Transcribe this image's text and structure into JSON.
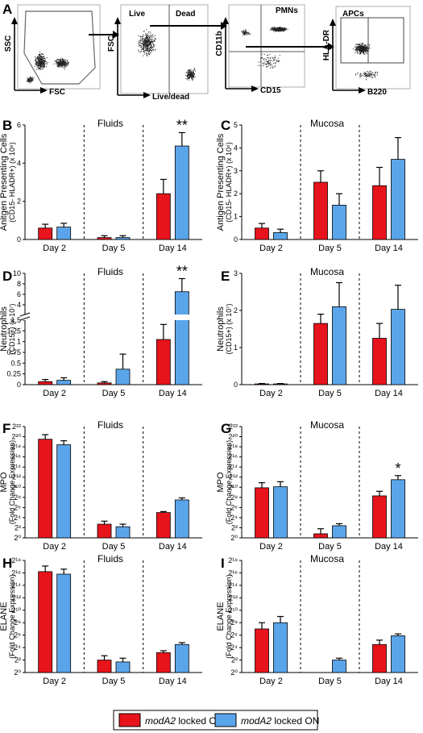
{
  "colors": {
    "off": "#e8141c",
    "on": "#5aa5ea",
    "axis": "#000000"
  },
  "flow": {
    "panel_letter": "A",
    "plots": [
      {
        "x_label": "FSC",
        "y_label": "SSC"
      },
      {
        "x_label": "Live/dead",
        "y_label": "FSC",
        "gates": [
          "Live",
          "Dead"
        ]
      },
      {
        "x_label": "CD15",
        "y_label": "CD11b",
        "gates": [
          "PMNs"
        ]
      },
      {
        "x_label": "B220",
        "y_label": "HLA-DR",
        "gates": [
          "APCs"
        ]
      }
    ]
  },
  "legend": {
    "off_prefix": "modA2",
    "off_suffix": " locked OFF",
    "on_prefix": "modA2",
    "on_suffix": " locked ON"
  },
  "chart_data": [
    {
      "panel": "B",
      "type": "bar",
      "title": "Fluids",
      "ylabel": "Anitgen Presenting Cells",
      "ylabel2": "(CD15- HLADR+) (x 10⁶)",
      "categories": [
        "Day 2",
        "Day 5",
        "Day 14"
      ],
      "ylim": [
        0,
        6
      ],
      "yticks": [
        "0",
        "2",
        "4",
        "6"
      ],
      "series": [
        {
          "name": "modA2 locked OFF",
          "values": [
            0.6,
            0.1,
            2.4
          ],
          "errors": [
            0.2,
            0.1,
            0.75
          ]
        },
        {
          "name": "modA2 locked ON",
          "values": [
            0.65,
            0.1,
            4.9
          ],
          "errors": [
            0.2,
            0.1,
            0.7
          ]
        }
      ],
      "annotations": [
        {
          "category": "Day 14",
          "text": "**"
        }
      ]
    },
    {
      "panel": "C",
      "type": "bar",
      "title": "Mucosa",
      "ylabel": "Antigen Presenting Cells",
      "ylabel2": "(CD15- HLADR+) (x 10⁶)",
      "categories": [
        "Day 2",
        "Day 5",
        "Day 14"
      ],
      "ylim": [
        0,
        5
      ],
      "yticks": [
        "0",
        "1",
        "2",
        "3",
        "4",
        "5"
      ],
      "series": [
        {
          "name": "modA2 locked OFF",
          "values": [
            0.5,
            2.5,
            2.35
          ],
          "errors": [
            0.2,
            0.5,
            0.8
          ]
        },
        {
          "name": "modA2 locked ON",
          "values": [
            0.3,
            1.5,
            3.5
          ],
          "errors": [
            0.15,
            0.5,
            0.95
          ]
        }
      ],
      "annotations": []
    },
    {
      "panel": "D",
      "type": "bar",
      "title": "Fluids",
      "ylabel": "Neutrophils",
      "ylabel2": "(CD15+) (x 10⁷)",
      "categories": [
        "Day 2",
        "Day 5",
        "Day 14"
      ],
      "axis_break": true,
      "yticks_lower": [
        "0",
        "0.25",
        "0.5",
        "0.75",
        "1",
        "1.25",
        "1.5"
      ],
      "yticks_upper": [
        "4",
        "6",
        "8",
        "10"
      ],
      "series": [
        {
          "name": "modA2 locked OFF",
          "values": [
            0.07,
            0.04,
            1.05
          ],
          "errors": [
            0.05,
            0.03,
            0.35
          ]
        },
        {
          "name": "modA2 locked ON",
          "values": [
            0.1,
            0.36,
            6.5
          ],
          "errors": [
            0.06,
            0.35,
            2.5
          ]
        }
      ],
      "annotations": [
        {
          "category": "Day 14",
          "text": "**"
        }
      ]
    },
    {
      "panel": "E",
      "type": "bar",
      "title": "Mucosa",
      "ylabel": "Neutrophils",
      "ylabel2": "(CD15+) (x 10⁷)",
      "categories": [
        "Day 2",
        "Day 5",
        "Day 14"
      ],
      "ylim": [
        0,
        3
      ],
      "yticks": [
        "0",
        "1",
        "2",
        "3"
      ],
      "series": [
        {
          "name": "modA2 locked OFF",
          "values": [
            0.02,
            1.65,
            1.25
          ],
          "errors": [
            0.01,
            0.25,
            0.4
          ]
        },
        {
          "name": "modA2 locked ON",
          "values": [
            0.02,
            2.1,
            2.03
          ],
          "errors": [
            0.01,
            0.65,
            0.65
          ]
        }
      ],
      "annotations": []
    },
    {
      "panel": "F",
      "type": "bar",
      "title": "Fluids",
      "ylabel": "MPO",
      "ylabel2": "(Fold Change Expression)",
      "log2": true,
      "categories": [
        "Day 2",
        "Day 5",
        "Day 14"
      ],
      "ylim": [
        0,
        22
      ],
      "yticks": [
        "2⁰",
        "2²",
        "2⁴",
        "2⁶",
        "2⁸",
        "2¹⁰",
        "2¹²",
        "2¹⁴",
        "2¹⁶",
        "2¹⁸",
        "2²⁰",
        "2²²"
      ],
      "series": [
        {
          "name": "modA2 locked OFF",
          "values": [
            19.5,
            2.7,
            5.0
          ],
          "errors": [
            0.9,
            0.6,
            0.2
          ]
        },
        {
          "name": "modA2 locked ON",
          "values": [
            18.4,
            2.2,
            7.5
          ],
          "errors": [
            0.8,
            0.5,
            0.4
          ]
        }
      ],
      "annotations": []
    },
    {
      "panel": "G",
      "type": "bar",
      "title": "Mucosa",
      "ylabel": "MPO",
      "ylabel2": "(Fold Change Expression)",
      "log2": true,
      "categories": [
        "Day 2",
        "Day 5",
        "Day 14"
      ],
      "ylim": [
        0,
        22
      ],
      "yticks": [
        "2⁰",
        "2²",
        "2⁴",
        "2⁶",
        "2⁸",
        "2¹⁰",
        "2¹²",
        "2¹⁴",
        "2¹⁶",
        "2¹⁸",
        "2²⁰",
        "2²²"
      ],
      "series": [
        {
          "name": "modA2 locked OFF",
          "values": [
            9.9,
            0.8,
            8.3
          ],
          "errors": [
            1.0,
            1.0,
            0.9
          ]
        },
        {
          "name": "modA2 locked ON",
          "values": [
            10.1,
            2.4,
            11.5
          ],
          "errors": [
            1.0,
            0.4,
            0.8
          ]
        }
      ],
      "annotations": [
        {
          "category": "Day 14",
          "text": "*"
        }
      ]
    },
    {
      "panel": "H",
      "type": "bar",
      "title": "Fluids",
      "ylabel": "ELANE",
      "ylabel2": "(Fold Change Expression)",
      "log2": true,
      "categories": [
        "Day 2",
        "Day 5",
        "Day 14"
      ],
      "ylim": [
        0,
        18
      ],
      "yticks": [
        "2⁰",
        "2²",
        "2⁴",
        "2⁶",
        "2⁸",
        "2¹⁰",
        "2¹²",
        "2¹⁴",
        "2¹⁶",
        "2¹⁸"
      ],
      "series": [
        {
          "name": "modA2 locked OFF",
          "values": [
            16.2,
            2.0,
            3.2
          ],
          "errors": [
            0.9,
            0.7,
            0.3
          ]
        },
        {
          "name": "modA2 locked ON",
          "values": [
            15.8,
            1.7,
            4.5
          ],
          "errors": [
            0.8,
            0.6,
            0.3
          ]
        }
      ],
      "annotations": []
    },
    {
      "panel": "I",
      "type": "bar",
      "title": "Mucosa",
      "ylabel": "ELANE",
      "ylabel2": "(Fold Change Expression)",
      "log2": true,
      "categories": [
        "Day 2",
        "Day 5",
        "Day 14"
      ],
      "ylim": [
        0,
        18
      ],
      "yticks": [
        "2⁰",
        "2²",
        "2⁴",
        "2⁶",
        "2⁸",
        "2¹⁰",
        "2¹²",
        "2¹⁴",
        "2¹⁶",
        "2¹⁸"
      ],
      "series": [
        {
          "name": "modA2 locked OFF",
          "values": [
            7.0,
            0.0,
            4.5
          ],
          "errors": [
            1.0,
            0.0,
            0.7
          ]
        },
        {
          "name": "modA2 locked ON",
          "values": [
            8.0,
            2.0,
            5.9
          ],
          "errors": [
            1.0,
            0.3,
            0.3
          ]
        }
      ],
      "annotations": []
    }
  ]
}
